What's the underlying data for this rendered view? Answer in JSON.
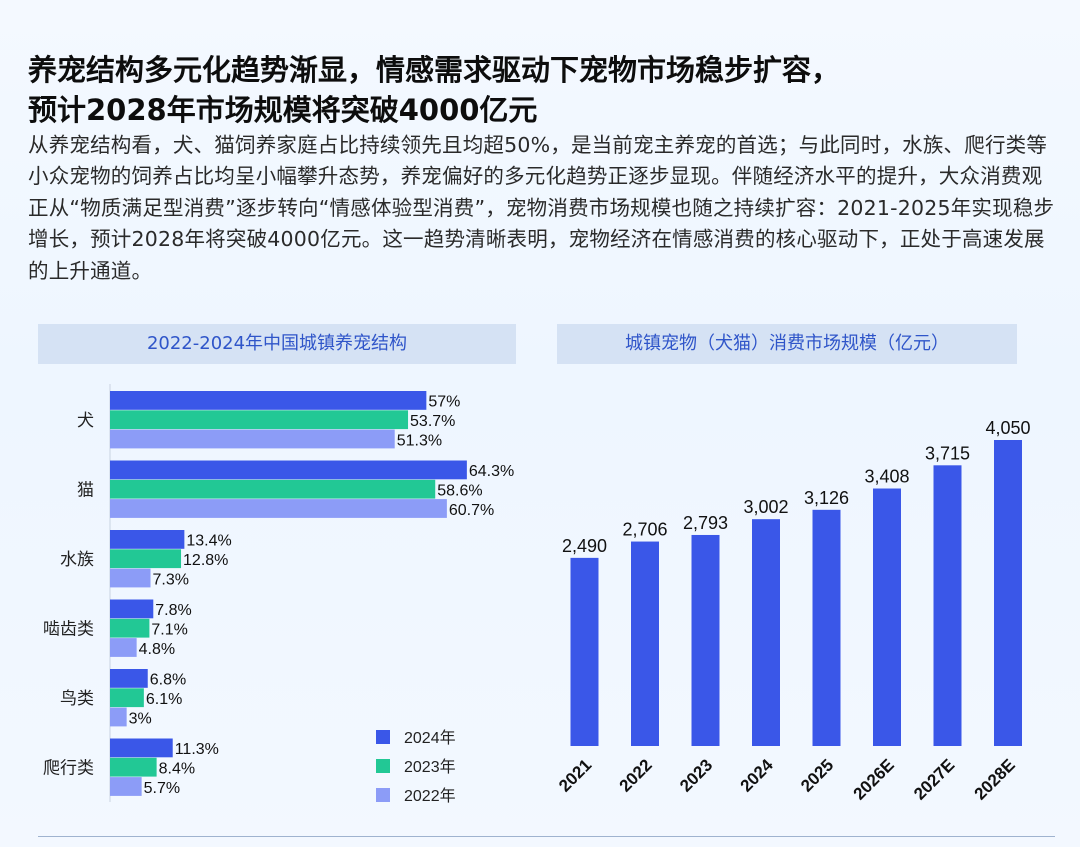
{
  "title": {
    "line1": "养宠结构多元化趋势渐显，情感需求驱动下宠物市场稳步扩容，",
    "line2": "预计2028年市场规模将突破4000亿元"
  },
  "paragraph": "从养宠结构看，犬、猫饲养家庭占比持续领先且均超50%，是当前宠主养宠的首选；与此同时，水族、爬行类等小众宠物的饲养占比均呈小幅攀升态势，养宠偏好的多元化趋势正逐步显现。伴随经济水平的提升，大众消费观正从“物质满足型消费”逐步转向“情感体验型消费”，宠物消费市场规模也随之持续扩容：2021-2025年实现稳步增长，预计2028年将突破4000亿元。这一趋势清晰表明，宠物经济在情感消费的核心驱动下，正处于高速发展的上升通道。",
  "left_panel": {
    "header": "2022-2024年中国城镇养宠结构"
  },
  "right_panel": {
    "header": "城镇宠物（犬猫）消费市场规模（亿元）"
  },
  "colors": {
    "s2024": "#3a57e8",
    "s2023": "#22c895",
    "s2022": "#8c9cf7",
    "accent": "#2f55c9"
  },
  "chart_data": [
    {
      "type": "bar",
      "orientation": "horizontal",
      "title": "2022-2024年中国城镇养宠结构",
      "categories": [
        "犬",
        "猫",
        "水族",
        "啮齿类",
        "鸟类",
        "爬行类"
      ],
      "series": [
        {
          "name": "2024年",
          "values": [
            57,
            64.3,
            13.4,
            7.8,
            6.8,
            11.3
          ],
          "labels": [
            "57%",
            "64.3%",
            "13.4%",
            "7.8%",
            "6.8%",
            "11.3%"
          ],
          "color": "#3a57e8"
        },
        {
          "name": "2023年",
          "values": [
            53.7,
            58.6,
            12.8,
            7.1,
            6.1,
            8.4
          ],
          "labels": [
            "53.7%",
            "58.6%",
            "12.8%",
            "7.1%",
            "6.1%",
            "8.4%"
          ],
          "color": "#22c895"
        },
        {
          "name": "2022年",
          "values": [
            51.3,
            60.7,
            7.3,
            4.8,
            3,
            5.7
          ],
          "labels": [
            "51.3%",
            "60.7%",
            "7.3%",
            "4.8%",
            "3%",
            "5.7%"
          ],
          "color": "#8c9cf7"
        }
      ],
      "unit": "%",
      "xlim": [
        0,
        100
      ],
      "grid": false,
      "legend": "bottom-right"
    },
    {
      "type": "bar",
      "title": "城镇宠物（犬猫）消费市场规模（亿元）",
      "categories": [
        "2021",
        "2022",
        "2023",
        "2024",
        "2025",
        "2026E",
        "2027E",
        "2028E"
      ],
      "values": [
        2490,
        2706,
        2793,
        3002,
        3126,
        3408,
        3715,
        4050
      ],
      "labels": [
        "2,490",
        "2,706",
        "2,793",
        "3,002",
        "3,126",
        "3,408",
        "3,715",
        "4,050"
      ],
      "color": "#3a57e8",
      "ylim": [
        0,
        4730
      ],
      "grid": false
    }
  ]
}
